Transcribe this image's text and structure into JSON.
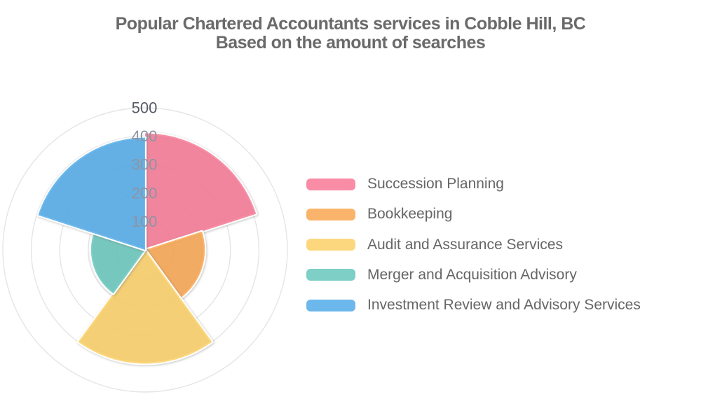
{
  "title": {
    "line1": "Popular Chartered Accountants services in Cobble Hill, BC",
    "line2": "Based on the amount of searches"
  },
  "chart_data": {
    "type": "polar-bar",
    "title": "Popular Chartered Accountants services in Cobble Hill, BC — Based on the amount of searches",
    "categories": [
      "Succession Planning",
      "Bookkeeping",
      "Audit and Assurance Services",
      "Merger and Acquisition Advisory",
      "Investment Review and Advisory Services"
    ],
    "values": [
      410,
      210,
      400,
      190,
      395
    ],
    "radial_ticks": [
      100,
      200,
      300,
      400,
      500
    ],
    "radial_range": [
      0,
      500
    ],
    "sector_span_deg": 72,
    "start_angle": "top",
    "direction": "clockwise",
    "grid": true,
    "legend_position": "right",
    "colors": {
      "sector_fills": [
        "#F87996",
        "#F9A650",
        "#FBD066",
        "#67C7BC",
        "#52ABE9"
      ],
      "legend_swatches": [
        "#F98DA6",
        "#FAB36A",
        "#FCD77D",
        "#7ECFC6",
        "#6CB8EC"
      ],
      "grid": "#e5e5e8",
      "tick_inner": "#8d94a3",
      "tick_outer": "#565b66",
      "title_text": "#6a6a6a",
      "legend_text": "#666666"
    }
  }
}
